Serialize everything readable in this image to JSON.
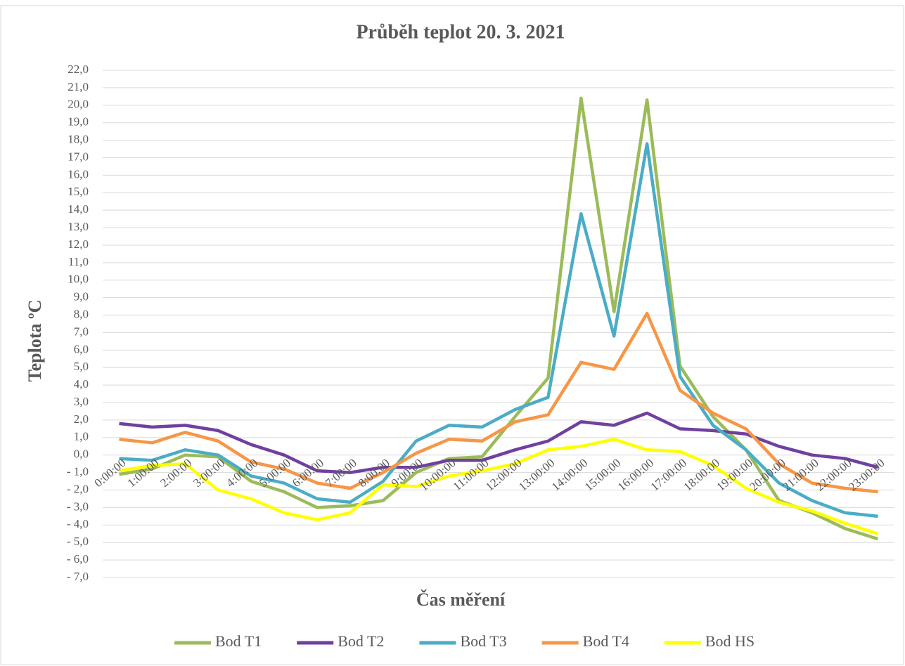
{
  "chart_data": {
    "type": "line",
    "title": "Průběh teplot 20. 3. 2021",
    "xlabel": "Čas měření",
    "ylabel": "Teplota ºC",
    "categories": [
      "0:00:00",
      "1:00:00",
      "2:00:00",
      "3:00:00",
      "4:00:00",
      "5:00:00",
      "6:00:00",
      "7:00:00",
      "8:00:00",
      "9:00:00",
      "10:00:00",
      "11:00:00",
      "12:00:00",
      "13:00:00",
      "14:00:00",
      "15:00:00",
      "16:00:00",
      "17:00:00",
      "18:00:00",
      "19:00:00",
      "20:00:00",
      "21:00:00",
      "22:00:00",
      "23:00:00"
    ],
    "series": [
      {
        "name": "Bod T1",
        "color": "#9bbb59",
        "values": [
          -1.1,
          -0.8,
          0.0,
          -0.1,
          -1.5,
          -2.1,
          -3.0,
          -2.9,
          -2.6,
          -1.0,
          -0.2,
          -0.1,
          2.2,
          4.4,
          20.4,
          8.2,
          20.3,
          5.1,
          2.2,
          0.3,
          -2.6,
          -3.3,
          -4.2,
          -4.8
        ]
      },
      {
        "name": "Bod T2",
        "color": "#7040a0",
        "values": [
          1.8,
          1.6,
          1.7,
          1.4,
          0.6,
          0.0,
          -0.9,
          -1.0,
          -0.7,
          -0.7,
          -0.3,
          -0.3,
          0.3,
          0.8,
          1.9,
          1.7,
          2.4,
          1.5,
          1.4,
          1.2,
          0.5,
          0.0,
          -0.2,
          -0.7
        ]
      },
      {
        "name": "Bod T3",
        "color": "#4bacc6",
        "values": [
          -0.2,
          -0.3,
          0.3,
          0.0,
          -1.2,
          -1.6,
          -2.5,
          -2.7,
          -1.5,
          0.8,
          1.7,
          1.6,
          2.6,
          3.3,
          13.8,
          6.8,
          17.8,
          4.5,
          1.7,
          0.3,
          -1.6,
          -2.6,
          -3.3,
          -3.5
        ]
      },
      {
        "name": "Bod T4",
        "color": "#f79646",
        "values": [
          0.9,
          0.7,
          1.3,
          0.8,
          -0.4,
          -0.8,
          -1.6,
          -1.9,
          -1.0,
          0.1,
          0.9,
          0.8,
          1.9,
          2.3,
          5.3,
          4.9,
          8.1,
          3.7,
          2.4,
          1.5,
          -0.5,
          -1.6,
          -1.9,
          -2.1
        ]
      },
      {
        "name": "Bod HS",
        "color": "#ffff00",
        "values": [
          -0.9,
          -0.6,
          -0.5,
          -2.0,
          -2.5,
          -3.3,
          -3.7,
          -3.3,
          -1.7,
          -1.8,
          -1.2,
          -0.9,
          -0.5,
          0.3,
          0.5,
          0.9,
          0.3,
          0.2,
          -0.6,
          -1.9,
          -2.7,
          -3.2,
          -3.9,
          -4.5
        ]
      }
    ],
    "ylim": [
      -7,
      22
    ],
    "yticks": [
      {
        "value": 22,
        "label": "22,0"
      },
      {
        "value": 21,
        "label": "21,0"
      },
      {
        "value": 20,
        "label": "20,0"
      },
      {
        "value": 19,
        "label": "19,0"
      },
      {
        "value": 18,
        "label": "18,0"
      },
      {
        "value": 17,
        "label": "17,0"
      },
      {
        "value": 16,
        "label": "16,0"
      },
      {
        "value": 15,
        "label": "15,0"
      },
      {
        "value": 14,
        "label": "14,0"
      },
      {
        "value": 13,
        "label": "13,0"
      },
      {
        "value": 12,
        "label": "12,0"
      },
      {
        "value": 11,
        "label": "11,0"
      },
      {
        "value": 10,
        "label": "10,0"
      },
      {
        "value": 9,
        "label": "9,0"
      },
      {
        "value": 8,
        "label": "8,0"
      },
      {
        "value": 7,
        "label": "7,0"
      },
      {
        "value": 6,
        "label": "6,0"
      },
      {
        "value": 5,
        "label": "5,0"
      },
      {
        "value": 4,
        "label": "4,0"
      },
      {
        "value": 3,
        "label": "3,0"
      },
      {
        "value": 2,
        "label": "2,0"
      },
      {
        "value": 1,
        "label": "1,0"
      },
      {
        "value": 0,
        "label": "0,0"
      },
      {
        "value": -1,
        "label": "- 1,0"
      },
      {
        "value": -2,
        "label": "- 2,0"
      },
      {
        "value": -3,
        "label": "- 3,0"
      },
      {
        "value": -4,
        "label": "- 4,0"
      },
      {
        "value": -5,
        "label": "- 5,0"
      },
      {
        "value": -6,
        "label": "- 6,0"
      },
      {
        "value": -7,
        "label": "- 7,0"
      }
    ],
    "grid": true,
    "legend": "bottom"
  }
}
